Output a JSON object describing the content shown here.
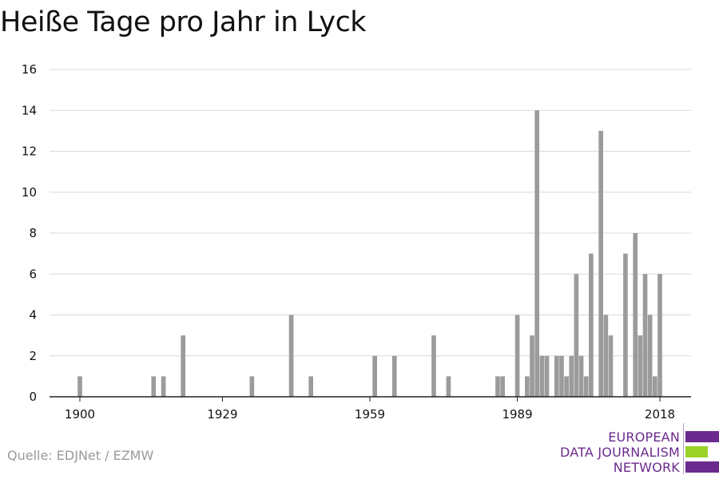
{
  "title": "Heiße Tage pro Jahr in Lyck",
  "source": "Quelle: EDJNet / EZMW",
  "logo": {
    "line1": "EUROPEAN",
    "line2": "DATA JOURNALISM",
    "line3": "NETWORK",
    "purple": "#6b2a8e",
    "green": "#9bd22a"
  },
  "colors": {
    "bar": "#9b9b9b",
    "grid": "#d9d9d9",
    "axis": "#222222",
    "text": "#111111"
  },
  "chart_data": {
    "type": "bar",
    "title": "Heiße Tage pro Jahr in Lyck",
    "xlabel": "",
    "ylabel": "",
    "xlim": [
      1900,
      2018
    ],
    "ylim": [
      0,
      16
    ],
    "grid": true,
    "legend": "none",
    "x_ticks": [
      1900,
      1929,
      1959,
      1989,
      2018
    ],
    "y_ticks": [
      0,
      2,
      4,
      6,
      8,
      10,
      12,
      14,
      16
    ],
    "x": [
      1900,
      1915,
      1917,
      1921,
      1935,
      1943,
      1947,
      1960,
      1964,
      1972,
      1975,
      1985,
      1986,
      1989,
      1991,
      1992,
      1993,
      1994,
      1995,
      1997,
      1998,
      1999,
      2000,
      2001,
      2002,
      2003,
      2004,
      2006,
      2007,
      2008,
      2011,
      2013,
      2014,
      2015,
      2016,
      2017,
      2018
    ],
    "values": [
      1,
      1,
      1,
      3,
      1,
      4,
      1,
      2,
      2,
      3,
      1,
      1,
      1,
      4,
      1,
      3,
      14,
      2,
      2,
      2,
      2,
      1,
      2,
      6,
      2,
      1,
      7,
      13,
      4,
      3,
      7,
      8,
      3,
      6,
      4,
      1,
      6
    ]
  }
}
